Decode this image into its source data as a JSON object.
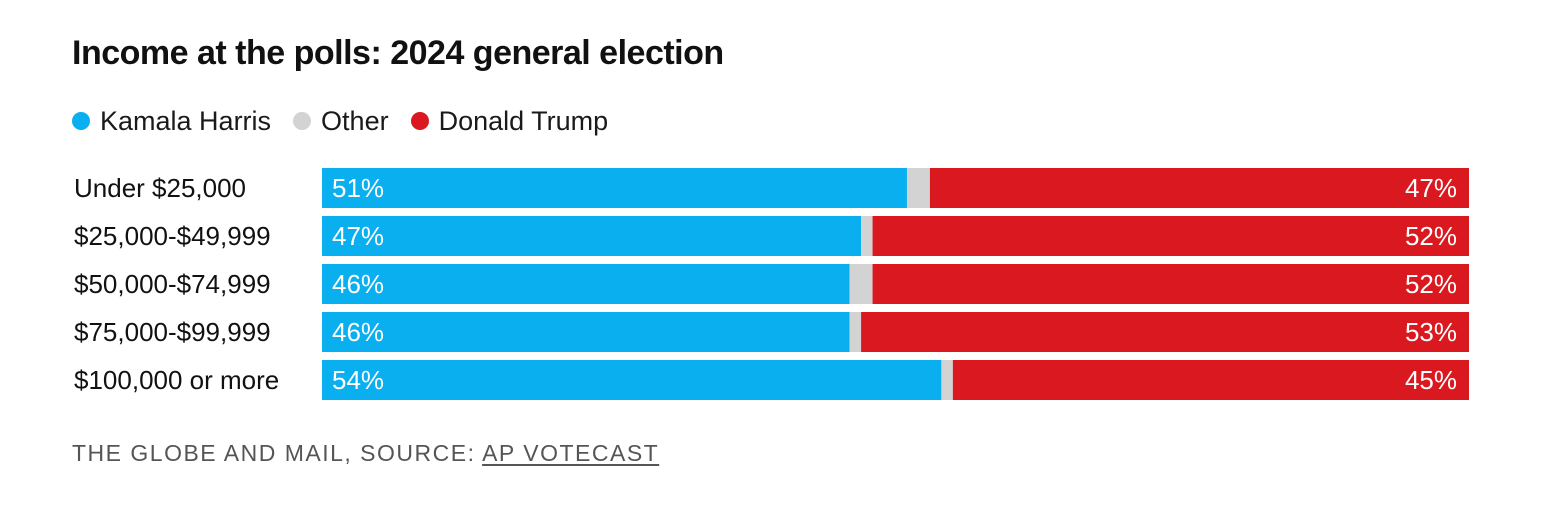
{
  "chart_data": {
    "type": "bar",
    "orientation": "horizontal",
    "stacked": true,
    "title": "Income at the polls: 2024 general election",
    "categories": [
      "Under $25,000",
      "$25,000-$49,999",
      "$50,000-$74,999",
      "$75,000-$99,999",
      "$100,000 or more"
    ],
    "series": [
      {
        "name": "Kamala Harris",
        "color": "#0aaff0",
        "values": [
          51,
          47,
          46,
          46,
          54
        ],
        "labels": [
          "51%",
          "47%",
          "46%",
          "46%",
          "54%"
        ]
      },
      {
        "name": "Other",
        "color": "#d3d3d3",
        "values": [
          2,
          1,
          2,
          1,
          1
        ]
      },
      {
        "name": "Donald Trump",
        "color": "#d9181f",
        "values": [
          47,
          52,
          52,
          53,
          45
        ],
        "labels": [
          "47%",
          "52%",
          "52%",
          "53%",
          "45%"
        ]
      }
    ],
    "xlim": [
      0,
      100
    ],
    "grid": false,
    "legend_position": "top-left"
  },
  "source": {
    "prefix": "THE GLOBE AND MAIL, SOURCE: ",
    "link_text": "AP VOTECAST"
  }
}
